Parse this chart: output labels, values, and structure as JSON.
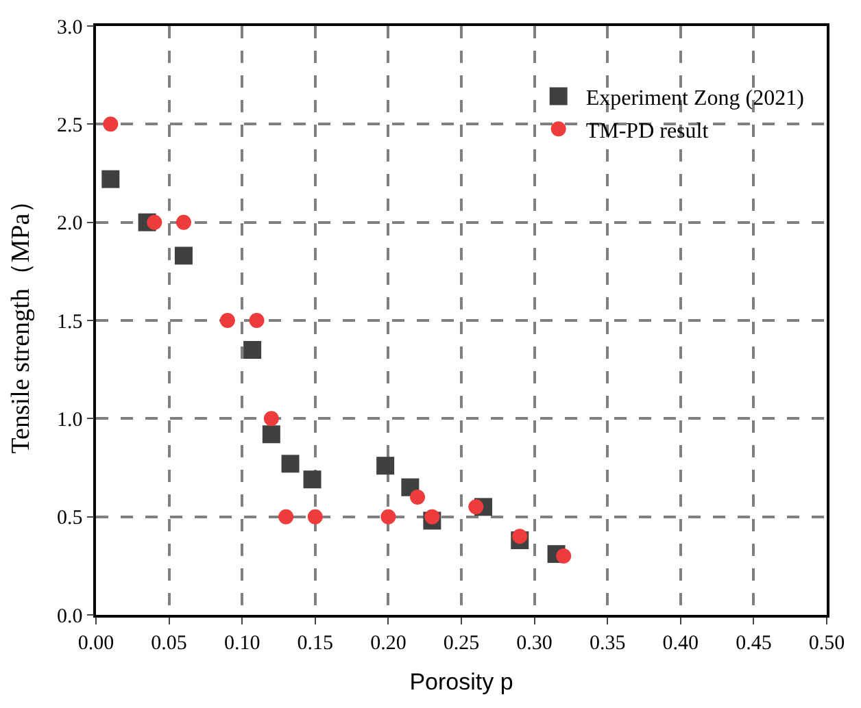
{
  "chart_data": {
    "type": "scatter",
    "xlabel": "Porosity p",
    "ylabel": "Tensile strength（MPa）",
    "xlim": [
      0,
      0.5
    ],
    "xticks": [
      {
        "value": 0,
        "label": "0.00"
      },
      {
        "value": 0.05,
        "label": "0.05"
      },
      {
        "value": 0.1,
        "label": "0.10"
      },
      {
        "value": 0.15,
        "label": "0.15"
      },
      {
        "value": 0.2,
        "label": "0.20"
      },
      {
        "value": 0.25,
        "label": "0.25"
      },
      {
        "value": 0.3,
        "label": "0.30"
      },
      {
        "value": 0.35,
        "label": "0.35"
      },
      {
        "value": 0.4,
        "label": "0.40"
      },
      {
        "value": 0.45,
        "label": "0.45"
      },
      {
        "value": 0.5,
        "label": "0.50"
      }
    ],
    "ylim": [
      0,
      3
    ],
    "yticks": [
      {
        "value": 0,
        "label": "0.0"
      },
      {
        "value": 0.5,
        "label": "0.5"
      },
      {
        "value": 1,
        "label": "1.0"
      },
      {
        "value": 1.5,
        "label": "1.5"
      },
      {
        "value": 2,
        "label": "2.0"
      },
      {
        "value": 2.5,
        "label": "2.5"
      },
      {
        "value": 3,
        "label": "3.0"
      }
    ],
    "grid": true,
    "legend": "top right",
    "series": [
      {
        "name": "Experiment Zong (2021)",
        "color": "#404040",
        "marker": "square",
        "x": [
          0.01,
          0.035,
          0.06,
          0.107,
          0.12,
          0.133,
          0.148,
          0.198,
          0.215,
          0.23,
          0.265,
          0.29,
          0.315
        ],
        "values": [
          2.22,
          2.0,
          1.83,
          1.35,
          0.92,
          0.77,
          0.69,
          0.76,
          0.65,
          0.48,
          0.55,
          0.38,
          0.31
        ]
      },
      {
        "name": "TM-PD result",
        "color": "#ee3b3b",
        "marker": "circle",
        "x": [
          0.01,
          0.04,
          0.06,
          0.09,
          0.11,
          0.12,
          0.13,
          0.15,
          0.2,
          0.22,
          0.23,
          0.26,
          0.29,
          0.32
        ],
        "values": [
          2.5,
          2.0,
          2.0,
          1.5,
          1.5,
          1.0,
          0.5,
          0.5,
          0.5,
          0.6,
          0.5,
          0.55,
          0.4,
          0.3
        ]
      }
    ]
  }
}
